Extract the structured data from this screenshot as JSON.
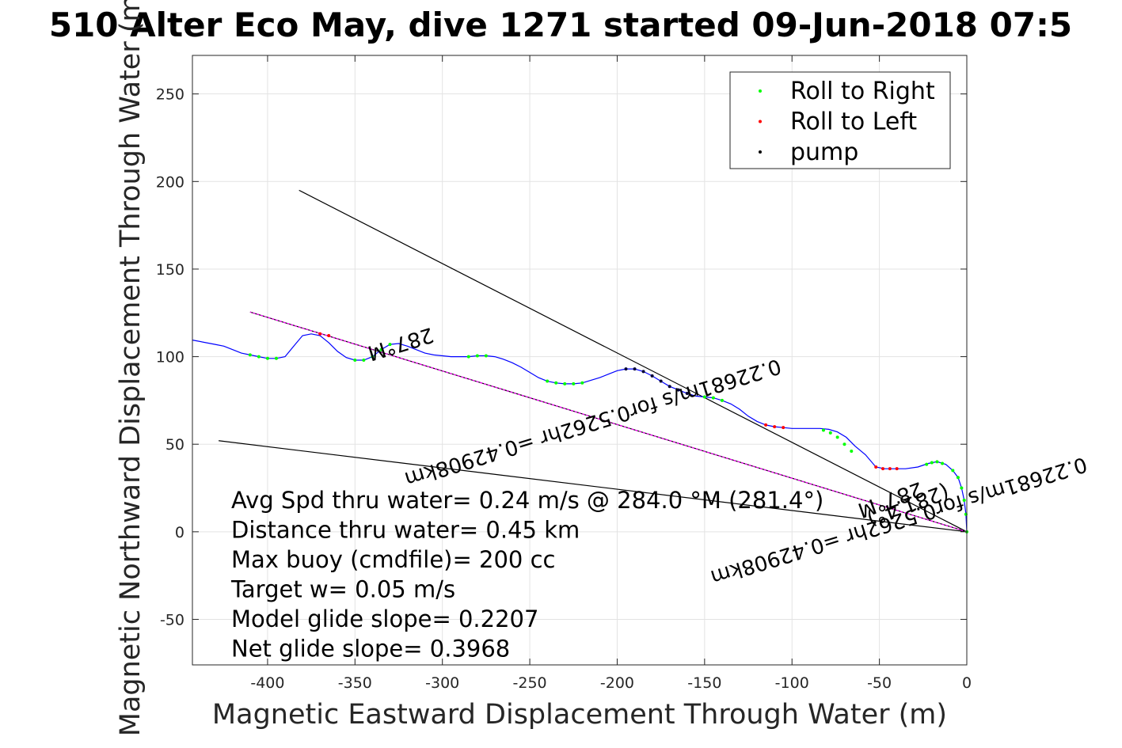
{
  "chart_data": {
    "type": "line",
    "title": "510 Alter Eco May, dive 1271 started 09-Jun-2018 07:5",
    "xlabel": "Magnetic Eastward Displacement Through Water (m)",
    "ylabel": "Magnetic Northward Displacement Through Water (m)",
    "xlim": [
      -443,
      0
    ],
    "ylim": [
      -76,
      272
    ],
    "xticks": [
      -400,
      -350,
      -300,
      -250,
      -200,
      -150,
      -100,
      -50,
      0
    ],
    "yticks": [
      -50,
      0,
      50,
      100,
      150,
      200,
      250
    ],
    "grid": true,
    "legend_position": "top-right",
    "legend": [
      {
        "label": "Roll to Right",
        "color": "#00ff00"
      },
      {
        "label": "Roll to Left",
        "color": "#ff0000"
      },
      {
        "label": "pump",
        "color": "#000000"
      }
    ],
    "track": {
      "name": "track",
      "color": "#0000ff",
      "x": [
        0,
        -0.5,
        -1.5,
        -3,
        -5,
        -8,
        -12,
        -17,
        -22,
        -28,
        -35,
        -42,
        -47,
        -52,
        -58,
        -64,
        -69,
        -74,
        -79,
        -84,
        -90,
        -95,
        -100,
        -105,
        -110,
        -115,
        -120,
        -125,
        -130,
        -135,
        -140,
        -145,
        -150,
        -155,
        -160,
        -165,
        -170,
        -175,
        -180,
        -185,
        -190,
        -195,
        -200,
        -205,
        -210,
        -215,
        -220,
        -225,
        -230,
        -235,
        -240,
        -245,
        -250,
        -255,
        -260,
        -265,
        -270,
        -275,
        -280,
        -285,
        -290,
        -295,
        -300,
        -305,
        -310,
        -315,
        -320,
        -325,
        -330,
        -335,
        -340,
        -345,
        -350,
        -355,
        -360,
        -365,
        -370,
        -375,
        -380,
        -385,
        -390,
        -395,
        -400,
        -405,
        -410,
        -415,
        -420,
        -425,
        -430,
        -443
      ],
      "y": [
        0,
        10,
        18,
        25,
        31,
        35,
        38.5,
        40,
        39,
        37,
        36,
        36,
        36,
        37,
        44,
        49,
        54,
        57,
        58.5,
        59,
        59,
        59,
        59,
        59.5,
        60,
        61,
        63,
        66,
        70,
        73,
        75,
        76.5,
        77,
        77.5,
        79,
        81,
        83,
        86,
        89,
        91.5,
        93,
        93,
        92,
        90,
        88,
        86.5,
        85,
        84.5,
        84.5,
        85,
        86,
        88,
        91,
        94,
        96.5,
        98.5,
        100,
        100.5,
        100.5,
        100,
        100,
        100,
        100.5,
        101,
        102,
        104,
        106,
        107.5,
        107,
        104,
        100,
        98,
        98,
        99.5,
        103,
        108,
        112,
        113,
        112,
        106,
        100,
        99,
        99,
        100,
        101,
        102,
        104,
        106,
        107,
        109.5
      ]
    },
    "roll_right_segments": [
      {
        "x": [
          0,
          -0.5,
          -1.5,
          -3,
          -5,
          -8
        ],
        "y": [
          0,
          10,
          18,
          25,
          31,
          35
        ]
      },
      {
        "x": [
          -14,
          -17,
          -20,
          -23
        ],
        "y": [
          39,
          40,
          39.5,
          38.5
        ]
      },
      {
        "x": [
          -66,
          -70,
          -74,
          -78,
          -82
        ],
        "y": [
          46,
          50,
          54,
          56.5,
          58
        ]
      },
      {
        "x": [
          -140,
          -145,
          -150
        ],
        "y": [
          75,
          76.5,
          77
        ]
      },
      {
        "x": [
          -220,
          -225,
          -230,
          -235,
          -240
        ],
        "y": [
          85,
          84.5,
          84.5,
          85,
          86
        ]
      },
      {
        "x": [
          -275,
          -280,
          -285
        ],
        "y": [
          100.5,
          100.5,
          100
        ]
      },
      {
        "x": [
          -330,
          -335,
          -340,
          -345,
          -350
        ],
        "y": [
          107,
          104,
          100,
          98,
          98
        ]
      },
      {
        "x": [
          -395,
          -400,
          -405,
          -410
        ],
        "y": [
          99,
          99,
          100,
          101
        ]
      }
    ],
    "roll_left_segments": [
      {
        "x": [
          -40,
          -44,
          -48,
          -52
        ],
        "y": [
          36,
          36,
          36,
          37
        ]
      },
      {
        "x": [
          -105,
          -110,
          -115
        ],
        "y": [
          59.5,
          60,
          61
        ]
      },
      {
        "x": [
          -365,
          -370
        ],
        "y": [
          112,
          113
        ]
      }
    ],
    "pump_segments": [
      {
        "x": [
          -160,
          -165,
          -170,
          -175,
          -180,
          -185,
          -190,
          -195
        ],
        "y": [
          79,
          81,
          83,
          86,
          89,
          91.5,
          93,
          93
        ]
      }
    ],
    "reference_lines": [
      {
        "x": [
          0,
          -382
        ],
        "y": [
          0,
          195
        ]
      },
      {
        "x": [
          0,
          -428
        ],
        "y": [
          0,
          52
        ]
      },
      {
        "x": [
          0,
          -410
        ],
        "y": [
          0,
          125.5
        ]
      }
    ],
    "target_line": {
      "color": "#ff00ff",
      "x": [
        0,
        -410
      ],
      "y": [
        0,
        125.5
      ]
    },
    "annotations": [
      {
        "text": "287°M",
        "x": -325,
        "y": 111
      },
      {
        "text": "0.22681m/s for0.5262hr =0.42908km",
        "x": -215,
        "y": 66
      },
      {
        "text": "0.22681m/s for0.5262hr =0.42908km",
        "x": -40,
        "y": 10
      },
      {
        "text": "287°M",
        "x": -45,
        "y": 22
      },
      {
        "text": "(281.4°)",
        "x": -35,
        "y": 19
      }
    ],
    "stats": [
      "Avg Spd thru water=  0.24 m/s @ 284.0 °M (281.4°)",
      "Distance thru water=  0.45 km",
      "Max buoy (cmdfile)= 200 cc",
      "Target w= 0.05 m/s",
      "Model glide slope= 0.2207",
      "Net glide slope= 0.3968"
    ]
  }
}
